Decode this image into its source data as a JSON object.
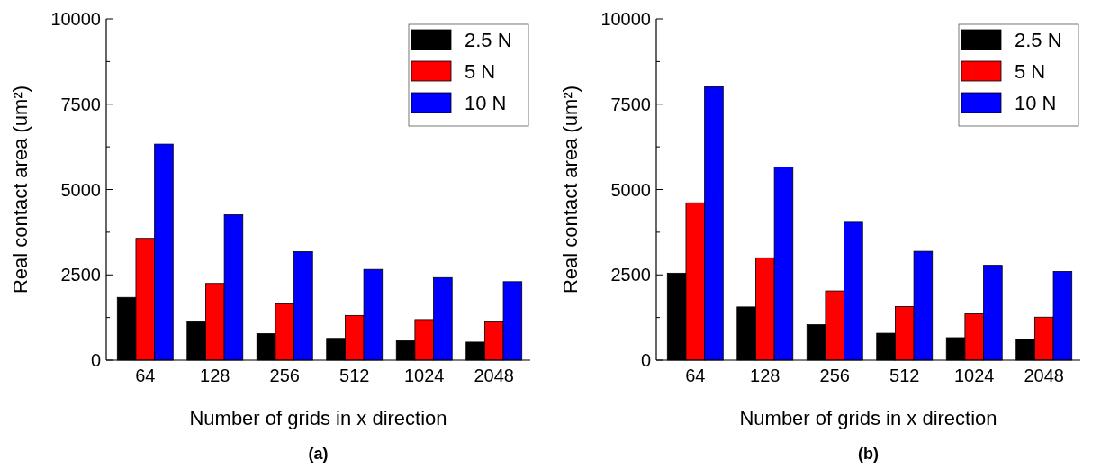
{
  "chart_data": [
    {
      "type": "bar",
      "title": "(a)",
      "xlabel": "Number of grids in x direction",
      "ylabel": "Real contact area (um²)",
      "categories": [
        "64",
        "128",
        "256",
        "512",
        "1024",
        "2048"
      ],
      "series": [
        {
          "name": "2.5 N",
          "color": "#000000",
          "values": [
            1840,
            1130,
            780,
            640,
            570,
            530
          ]
        },
        {
          "name": "5 N",
          "color": "#ff0000",
          "values": [
            3570,
            2250,
            1650,
            1310,
            1190,
            1120
          ]
        },
        {
          "name": "10 N",
          "color": "#0000ff",
          "values": [
            6330,
            4260,
            3180,
            2660,
            2420,
            2300
          ]
        }
      ],
      "ylim": [
        0,
        10000
      ],
      "yticks": [
        0,
        {
          "value": 1250,
          "label": null
        },
        2500,
        {
          "value": 3750,
          "label": null
        },
        5000,
        {
          "value": 6250,
          "label": null
        },
        7500,
        {
          "value": 8750,
          "label": null
        },
        10000
      ],
      "legend": "top right"
    },
    {
      "type": "bar",
      "title": "(b)",
      "xlabel": "Number of grids in x direction",
      "ylabel": "Real contact area (um²)",
      "categories": [
        "64",
        "128",
        "256",
        "512",
        "1024",
        "2048"
      ],
      "series": [
        {
          "name": "2.5 N",
          "color": "#000000",
          "values": [
            2550,
            1560,
            1040,
            790,
            660,
            620
          ]
        },
        {
          "name": "5 N",
          "color": "#ff0000",
          "values": [
            4610,
            3000,
            2030,
            1570,
            1360,
            1260
          ]
        },
        {
          "name": "10 N",
          "color": "#0000ff",
          "values": [
            8010,
            5660,
            4040,
            3190,
            2780,
            2600
          ]
        }
      ],
      "ylim": [
        0,
        10000
      ],
      "yticks": [
        0,
        {
          "value": 1250,
          "label": null
        },
        2500,
        {
          "value": 3750,
          "label": null
        },
        5000,
        {
          "value": 6250,
          "label": null
        },
        7500,
        {
          "value": 8750,
          "label": null
        },
        10000
      ],
      "legend": "top right"
    }
  ]
}
